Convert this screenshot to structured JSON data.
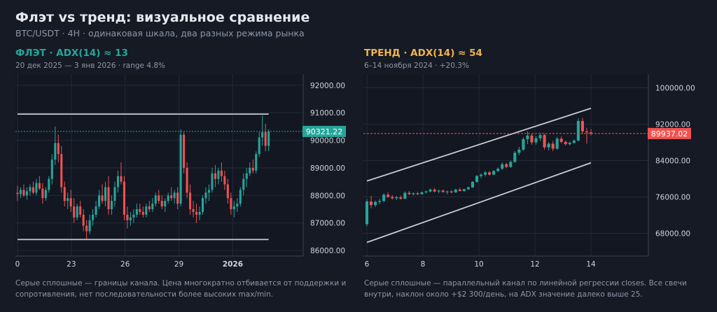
{
  "header": {
    "title": "Флэт vs тренд: визуальное сравнение",
    "subtitle": "BTC/USDT · 4H · одинаковая шкала, два разных режима рынка"
  },
  "colors": {
    "background": "#151a25",
    "plot_background": "#121722",
    "grid": "#232a38",
    "bull": "#26a69a",
    "bear": "#ef5350",
    "flat_accent": "#26a69a",
    "trend_accent": "#f0b54a",
    "channel": "#c8ccd4",
    "text_muted": "#8e96a6"
  },
  "chart_data": [
    {
      "type": "candlestick",
      "title": "ФЛЭТ · ADX(14) ≈ 13",
      "subtitle": "20 дек 2025 — 3 янв 2026 · range 4.8%",
      "caption": "Серые сплошные — границы канала. Цена многократно отбивается от поддержки и сопротивления, нет последовательности более высоких max/min.",
      "x_ticks": [
        {
          "label": "0",
          "at": 0,
          "bold": false
        },
        {
          "label": "23",
          "at": 18,
          "bold": false
        },
        {
          "label": "26",
          "at": 36,
          "bold": false
        },
        {
          "label": "29",
          "at": 54,
          "bold": false
        },
        {
          "label": "2026",
          "at": 72,
          "bold": true
        }
      ],
      "x_range": [
        0,
        89
      ],
      "ylim": [
        85800,
        92400
      ],
      "y_ticks": [
        86000,
        87000,
        88000,
        89000,
        90000,
        91000,
        92000
      ],
      "channel_upper": {
        "x": [
          0,
          84
        ],
        "y": [
          90950,
          90950
        ]
      },
      "channel_lower": {
        "x": [
          0,
          84
        ],
        "y": [
          86400,
          86400
        ]
      },
      "last_price": 90321.22,
      "last_price_label": "90321.22",
      "grid": true,
      "candles": [
        {
          "o": 88100,
          "h": 88350,
          "l": 87800,
          "c": 88050
        },
        {
          "o": 88050,
          "h": 88300,
          "l": 87900,
          "c": 88200
        },
        {
          "o": 88200,
          "h": 88400,
          "l": 87950,
          "c": 88000
        },
        {
          "o": 88000,
          "h": 88300,
          "l": 87850,
          "c": 88150
        },
        {
          "o": 88150,
          "h": 88400,
          "l": 88000,
          "c": 88300
        },
        {
          "o": 88300,
          "h": 88500,
          "l": 88050,
          "c": 88100
        },
        {
          "o": 88100,
          "h": 88600,
          "l": 88000,
          "c": 88450
        },
        {
          "o": 88450,
          "h": 88700,
          "l": 88200,
          "c": 88250
        },
        {
          "o": 88250,
          "h": 88450,
          "l": 87700,
          "c": 87900
        },
        {
          "o": 87900,
          "h": 88300,
          "l": 87800,
          "c": 88200
        },
        {
          "o": 88200,
          "h": 88700,
          "l": 88100,
          "c": 88600
        },
        {
          "o": 88600,
          "h": 89500,
          "l": 88400,
          "c": 89300
        },
        {
          "o": 89300,
          "h": 90500,
          "l": 89100,
          "c": 89900
        },
        {
          "o": 89900,
          "h": 90200,
          "l": 89200,
          "c": 89500
        },
        {
          "o": 89500,
          "h": 89800,
          "l": 88100,
          "c": 88300
        },
        {
          "o": 88300,
          "h": 88500,
          "l": 87600,
          "c": 87800
        },
        {
          "o": 87800,
          "h": 88100,
          "l": 87500,
          "c": 87900
        },
        {
          "o": 87900,
          "h": 88200,
          "l": 87400,
          "c": 87600
        },
        {
          "o": 87600,
          "h": 87900,
          "l": 87000,
          "c": 87200
        },
        {
          "o": 87200,
          "h": 87700,
          "l": 87100,
          "c": 87600
        },
        {
          "o": 87600,
          "h": 87800,
          "l": 87200,
          "c": 87300
        },
        {
          "o": 87300,
          "h": 87500,
          "l": 86700,
          "c": 86900
        },
        {
          "o": 86900,
          "h": 87100,
          "l": 86400,
          "c": 86700
        },
        {
          "o": 86700,
          "h": 87300,
          "l": 86600,
          "c": 87100
        },
        {
          "o": 87100,
          "h": 87500,
          "l": 86900,
          "c": 87300
        },
        {
          "o": 87300,
          "h": 87800,
          "l": 87200,
          "c": 87600
        },
        {
          "o": 87600,
          "h": 88200,
          "l": 87500,
          "c": 88000
        },
        {
          "o": 88000,
          "h": 88400,
          "l": 87700,
          "c": 87800
        },
        {
          "o": 87800,
          "h": 88500,
          "l": 87600,
          "c": 88300
        },
        {
          "o": 88300,
          "h": 88700,
          "l": 87300,
          "c": 87500
        },
        {
          "o": 87500,
          "h": 88000,
          "l": 87300,
          "c": 87800
        },
        {
          "o": 87800,
          "h": 88500,
          "l": 87600,
          "c": 88300
        },
        {
          "o": 88300,
          "h": 88900,
          "l": 88100,
          "c": 88700
        },
        {
          "o": 88700,
          "h": 89200,
          "l": 88400,
          "c": 88500
        },
        {
          "o": 88500,
          "h": 88700,
          "l": 87100,
          "c": 87300
        },
        {
          "o": 87300,
          "h": 87600,
          "l": 86800,
          "c": 87100
        },
        {
          "o": 87100,
          "h": 87400,
          "l": 86900,
          "c": 87200
        },
        {
          "o": 87200,
          "h": 87500,
          "l": 87000,
          "c": 87300
        },
        {
          "o": 87300,
          "h": 87700,
          "l": 87200,
          "c": 87500
        },
        {
          "o": 87500,
          "h": 87700,
          "l": 87300,
          "c": 87400
        },
        {
          "o": 87400,
          "h": 87600,
          "l": 87200,
          "c": 87300
        },
        {
          "o": 87300,
          "h": 87700,
          "l": 87200,
          "c": 87600
        },
        {
          "o": 87600,
          "h": 87800,
          "l": 87400,
          "c": 87500
        },
        {
          "o": 87500,
          "h": 87900,
          "l": 87400,
          "c": 87700
        },
        {
          "o": 87700,
          "h": 88100,
          "l": 87600,
          "c": 88000
        },
        {
          "o": 88000,
          "h": 88200,
          "l": 87700,
          "c": 87800
        },
        {
          "o": 87800,
          "h": 88000,
          "l": 87500,
          "c": 87600
        },
        {
          "o": 87600,
          "h": 87900,
          "l": 87400,
          "c": 87800
        },
        {
          "o": 87800,
          "h": 88100,
          "l": 87700,
          "c": 88000
        },
        {
          "o": 88000,
          "h": 88300,
          "l": 87800,
          "c": 87900
        },
        {
          "o": 87900,
          "h": 88200,
          "l": 87700,
          "c": 88100
        },
        {
          "o": 88100,
          "h": 88300,
          "l": 87500,
          "c": 87700
        },
        {
          "o": 87700,
          "h": 90400,
          "l": 87600,
          "c": 90200
        },
        {
          "o": 90200,
          "h": 90300,
          "l": 88800,
          "c": 89000
        },
        {
          "o": 89000,
          "h": 89200,
          "l": 87900,
          "c": 88100
        },
        {
          "o": 88100,
          "h": 88400,
          "l": 87300,
          "c": 87500
        },
        {
          "o": 87500,
          "h": 87800,
          "l": 87200,
          "c": 87400
        },
        {
          "o": 87400,
          "h": 87700,
          "l": 87000,
          "c": 87300
        },
        {
          "o": 87300,
          "h": 87600,
          "l": 87100,
          "c": 87400
        },
        {
          "o": 87400,
          "h": 88000,
          "l": 87300,
          "c": 87900
        },
        {
          "o": 87900,
          "h": 88300,
          "l": 87700,
          "c": 88100
        },
        {
          "o": 88100,
          "h": 88400,
          "l": 87800,
          "c": 88200
        },
        {
          "o": 88200,
          "h": 89000,
          "l": 88100,
          "c": 88800
        },
        {
          "o": 88800,
          "h": 89100,
          "l": 88300,
          "c": 88600
        },
        {
          "o": 88600,
          "h": 89000,
          "l": 88400,
          "c": 88900
        },
        {
          "o": 88900,
          "h": 89200,
          "l": 88500,
          "c": 88700
        },
        {
          "o": 88700,
          "h": 88900,
          "l": 88200,
          "c": 88400
        },
        {
          "o": 88400,
          "h": 88600,
          "l": 87700,
          "c": 87900
        },
        {
          "o": 87900,
          "h": 88100,
          "l": 87300,
          "c": 87500
        },
        {
          "o": 87500,
          "h": 87800,
          "l": 87200,
          "c": 87600
        },
        {
          "o": 87600,
          "h": 87900,
          "l": 87400,
          "c": 87700
        },
        {
          "o": 87700,
          "h": 88300,
          "l": 87600,
          "c": 88200
        },
        {
          "o": 88200,
          "h": 88800,
          "l": 88000,
          "c": 88600
        },
        {
          "o": 88600,
          "h": 89000,
          "l": 88300,
          "c": 88800
        },
        {
          "o": 88800,
          "h": 89200,
          "l": 88700,
          "c": 89000
        },
        {
          "o": 89000,
          "h": 89300,
          "l": 88800,
          "c": 88900
        },
        {
          "o": 88900,
          "h": 89600,
          "l": 88800,
          "c": 89500
        },
        {
          "o": 89500,
          "h": 90300,
          "l": 89400,
          "c": 90100
        },
        {
          "o": 90100,
          "h": 90900,
          "l": 89800,
          "c": 90300
        },
        {
          "o": 90300,
          "h": 90600,
          "l": 89600,
          "c": 89800
        },
        {
          "o": 89800,
          "h": 90400,
          "l": 89600,
          "c": 90321
        }
      ]
    },
    {
      "type": "candlestick",
      "title": "ТРЕНД · ADX(14) ≈ 54",
      "subtitle": "6–14 ноября 2024 · +20.3%",
      "caption": "Серые сплошные — параллельный канал по линейной регрессии closes. Все свечи внутри, наклон около +$2 300/день, на ADX значение далеко выше 25.",
      "x_ticks": [
        {
          "label": "6",
          "at": 0,
          "bold": false
        },
        {
          "label": "8",
          "at": 2,
          "bold": false
        },
        {
          "label": "10",
          "at": 4,
          "bold": false
        },
        {
          "label": "12",
          "at": 6,
          "bold": false
        },
        {
          "label": "14",
          "at": 8,
          "bold": false
        }
      ],
      "x_range": [
        0,
        9
      ],
      "ylim": [
        63000,
        103000
      ],
      "y_ticks": [
        68000,
        76000,
        84000,
        92000,
        100000
      ],
      "channel_upper": {
        "x": [
          0,
          8
        ],
        "y": [
          79500,
          95500
        ]
      },
      "channel_lower": {
        "x": [
          0,
          8
        ],
        "y": [
          66000,
          83500
        ]
      },
      "last_price": 89937.02,
      "last_price_label": "89937.02",
      "grid": true,
      "candles": [
        {
          "o": 70000,
          "h": 75500,
          "l": 69500,
          "c": 75000
        },
        {
          "o": 75000,
          "h": 76200,
          "l": 73500,
          "c": 74200
        },
        {
          "o": 74200,
          "h": 75200,
          "l": 73800,
          "c": 74900
        },
        {
          "o": 74900,
          "h": 75600,
          "l": 74400,
          "c": 75100
        },
        {
          "o": 75100,
          "h": 76800,
          "l": 74800,
          "c": 76500
        },
        {
          "o": 76500,
          "h": 77000,
          "l": 75800,
          "c": 76000
        },
        {
          "o": 76000,
          "h": 76400,
          "l": 75400,
          "c": 75700
        },
        {
          "o": 75700,
          "h": 76200,
          "l": 75300,
          "c": 75900
        },
        {
          "o": 75900,
          "h": 76300,
          "l": 75400,
          "c": 75600
        },
        {
          "o": 75600,
          "h": 77200,
          "l": 75500,
          "c": 76900
        },
        {
          "o": 76900,
          "h": 77300,
          "l": 76400,
          "c": 76600
        },
        {
          "o": 76600,
          "h": 77000,
          "l": 76300,
          "c": 76800
        },
        {
          "o": 76800,
          "h": 77100,
          "l": 76400,
          "c": 76600
        },
        {
          "o": 76600,
          "h": 77200,
          "l": 76500,
          "c": 77000
        },
        {
          "o": 77000,
          "h": 77400,
          "l": 76700,
          "c": 77200
        },
        {
          "o": 77200,
          "h": 77900,
          "l": 77000,
          "c": 77600
        },
        {
          "o": 77600,
          "h": 78000,
          "l": 77000,
          "c": 77200
        },
        {
          "o": 77200,
          "h": 77600,
          "l": 76800,
          "c": 77400
        },
        {
          "o": 77400,
          "h": 77600,
          "l": 76900,
          "c": 77100
        },
        {
          "o": 77100,
          "h": 77400,
          "l": 76600,
          "c": 77200
        },
        {
          "o": 77200,
          "h": 77500,
          "l": 76800,
          "c": 77000
        },
        {
          "o": 77000,
          "h": 77800,
          "l": 76900,
          "c": 77600
        },
        {
          "o": 77600,
          "h": 78000,
          "l": 77200,
          "c": 77300
        },
        {
          "o": 77300,
          "h": 77800,
          "l": 77100,
          "c": 77700
        },
        {
          "o": 77700,
          "h": 78300,
          "l": 77500,
          "c": 78100
        },
        {
          "o": 78100,
          "h": 79500,
          "l": 78000,
          "c": 79300
        },
        {
          "o": 79300,
          "h": 80800,
          "l": 79100,
          "c": 80600
        },
        {
          "o": 80600,
          "h": 81200,
          "l": 80100,
          "c": 80900
        },
        {
          "o": 80900,
          "h": 81700,
          "l": 80500,
          "c": 81400
        },
        {
          "o": 81400,
          "h": 81700,
          "l": 80700,
          "c": 80900
        },
        {
          "o": 80900,
          "h": 81900,
          "l": 80800,
          "c": 81700
        },
        {
          "o": 81700,
          "h": 82500,
          "l": 81500,
          "c": 82200
        },
        {
          "o": 82200,
          "h": 83600,
          "l": 81900,
          "c": 83200
        },
        {
          "o": 83200,
          "h": 83500,
          "l": 82300,
          "c": 82600
        },
        {
          "o": 82600,
          "h": 84000,
          "l": 82400,
          "c": 83700
        },
        {
          "o": 83700,
          "h": 86100,
          "l": 83500,
          "c": 85700
        },
        {
          "o": 85700,
          "h": 87000,
          "l": 85200,
          "c": 86400
        },
        {
          "o": 86400,
          "h": 89100,
          "l": 86100,
          "c": 88700
        },
        {
          "o": 88700,
          "h": 90400,
          "l": 87600,
          "c": 89500
        },
        {
          "o": 89500,
          "h": 89900,
          "l": 87500,
          "c": 88000
        },
        {
          "o": 88000,
          "h": 89400,
          "l": 87500,
          "c": 88900
        },
        {
          "o": 88900,
          "h": 90100,
          "l": 88300,
          "c": 89600
        },
        {
          "o": 89600,
          "h": 89900,
          "l": 86400,
          "c": 86900
        },
        {
          "o": 86900,
          "h": 88100,
          "l": 86200,
          "c": 87700
        },
        {
          "o": 87700,
          "h": 88300,
          "l": 86100,
          "c": 86600
        },
        {
          "o": 86600,
          "h": 89200,
          "l": 86400,
          "c": 88800
        },
        {
          "o": 88800,
          "h": 89300,
          "l": 87800,
          "c": 88100
        },
        {
          "o": 88100,
          "h": 88400,
          "l": 87300,
          "c": 87600
        },
        {
          "o": 87600,
          "h": 88200,
          "l": 87300,
          "c": 87900
        },
        {
          "o": 87900,
          "h": 88700,
          "l": 87700,
          "c": 88400
        },
        {
          "o": 88400,
          "h": 93300,
          "l": 88200,
          "c": 92700
        },
        {
          "o": 92700,
          "h": 93400,
          "l": 89800,
          "c": 90400
        },
        {
          "o": 90400,
          "h": 91200,
          "l": 87700,
          "c": 90200
        },
        {
          "o": 90200,
          "h": 90900,
          "l": 89500,
          "c": 89937
        }
      ]
    }
  ]
}
